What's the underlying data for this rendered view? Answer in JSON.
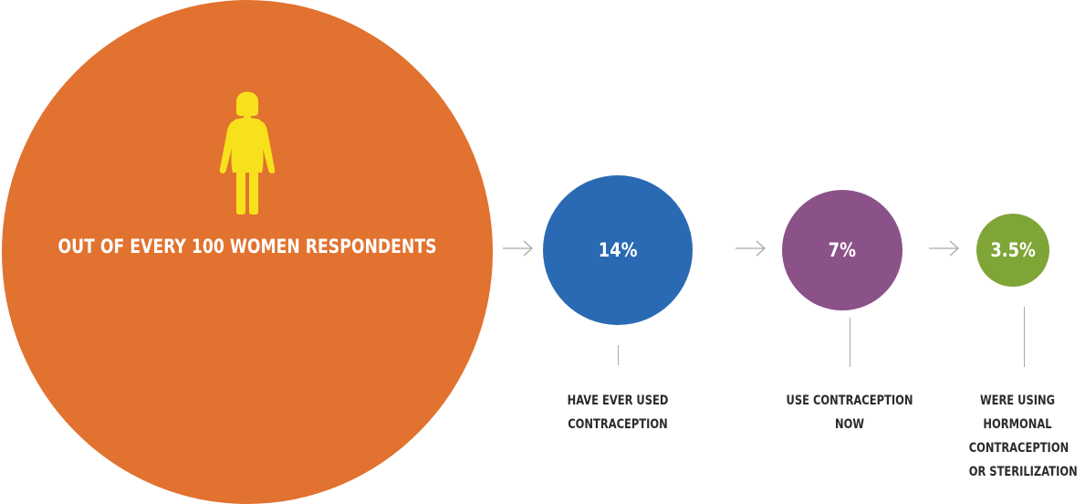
{
  "colors": {
    "base": "#e1722f",
    "step1": "#2a6ab3",
    "step2": "#8b5189",
    "step3": "#7fa536",
    "icon": "#f7e11c",
    "connector": "#a9a9a9",
    "caption": "#2b2b2b"
  },
  "base": {
    "label": "OUT OF EVERY 100 WOMEN RESPONDENTS",
    "icon": "woman-icon"
  },
  "steps": [
    {
      "value": "14%",
      "caption_lines": [
        "HAVE EVER USED",
        "CONTRACEPTION"
      ]
    },
    {
      "value": "7%",
      "caption_lines": [
        "USE CONTRACEPTION",
        "NOW"
      ]
    },
    {
      "value": "3.5%",
      "caption_lines": [
        "WERE USING",
        "HORMONAL",
        "CONTRACEPTION",
        "OR STERILIZATION"
      ]
    }
  ]
}
